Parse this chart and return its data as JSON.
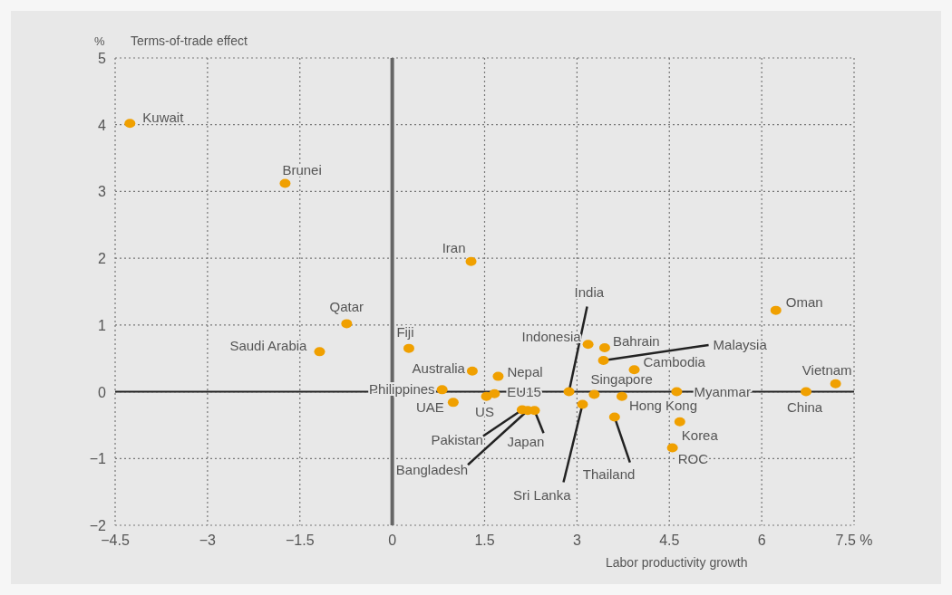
{
  "chart_data": {
    "type": "scatter",
    "ylabel": "Terms-of-trade effect",
    "xlabel": "Labor productivity growth",
    "xlim": [
      -4.5,
      7.5
    ],
    "ylim": [
      -2,
      5
    ],
    "xticks": [
      {
        "value": -4.5,
        "label": "−4.5"
      },
      {
        "value": -3,
        "label": "−3"
      },
      {
        "value": -1.5,
        "label": "−1.5"
      },
      0,
      1.5,
      3,
      4.5,
      6,
      {
        "value": 7.5,
        "label": "7.5 %"
      }
    ],
    "yticks": [
      {
        "value": -2,
        "label": "−2"
      },
      {
        "value": -1,
        "label": "−1"
      },
      0,
      1,
      2,
      3,
      4,
      5
    ],
    "grid": true,
    "marker": "circle",
    "ref_lines": [
      {
        "axis": "x",
        "value": 0,
        "color": "#666666"
      },
      {
        "axis": "y",
        "value": 0,
        "color": "#222222"
      }
    ],
    "series": [
      {
        "color": "#f0a000",
        "x": [
          -4.26,
          -1.74,
          1.28,
          -0.74,
          -1.18,
          0.27,
          1.3,
          1.72,
          0.81,
          0.99,
          1.53,
          1.66,
          2.11,
          2.2,
          2.31,
          2.87,
          3.09,
          3.18,
          3.45,
          3.43,
          3.28,
          3.93,
          3.73,
          3.61,
          4.62,
          4.67,
          4.55,
          6.23,
          6.72,
          7.2
        ],
        "values": [
          4.02,
          3.12,
          1.95,
          1.02,
          0.6,
          0.65,
          0.31,
          0.23,
          0.03,
          -0.16,
          -0.07,
          -0.03,
          -0.27,
          -0.28,
          -0.28,
          0,
          -0.19,
          0.71,
          0.66,
          0.47,
          -0.04,
          0.33,
          -0.07,
          -0.38,
          0,
          -0.45,
          -0.84,
          1.22,
          0,
          0.12
        ]
      }
    ],
    "annotations": [
      "%",
      {
        "text": "Kuwait",
        "x": -4.26,
        "y": 4.02
      },
      {
        "text": "Brunei",
        "x": -1.74,
        "y": 3.12
      },
      {
        "text": "Iran",
        "x": 1.28,
        "y": 1.95
      },
      {
        "text": "Qatar",
        "x": -0.74,
        "y": 1.02
      },
      {
        "text": "Saudi Arabia",
        "x": -1.18,
        "y": 0.6
      },
      {
        "text": "Fiji",
        "x": 0.27,
        "y": 0.65
      },
      {
        "text": "Australia",
        "x": 1.3,
        "y": 0.31
      },
      {
        "text": "Nepal",
        "x": 1.72,
        "y": 0.23
      },
      {
        "text": "Philippines",
        "x": 0.81,
        "y": 0.03
      },
      {
        "text": "UAE",
        "x": 0.99,
        "y": -0.16
      },
      {
        "text": "US",
        "x": 1.53,
        "y": -0.07
      },
      {
        "text": "EU15",
        "x": 1.66,
        "y": -0.03
      },
      {
        "text": "Pakistan",
        "x": 2.11,
        "y": -0.27
      },
      {
        "text": "Bangladesh",
        "x": 2.2,
        "y": -0.28
      },
      {
        "text": "Japan",
        "x": 2.31,
        "y": -0.28
      },
      {
        "text": "India",
        "x": 2.87,
        "y": 0
      },
      {
        "text": "Sri Lanka",
        "x": 3.09,
        "y": -0.19
      },
      {
        "text": "Indonesia",
        "x": 3.18,
        "y": 0.71
      },
      {
        "text": "Bahrain",
        "x": 3.45,
        "y": 0.66
      },
      {
        "text": "Malaysia",
        "x": 3.43,
        "y": 0.47
      },
      {
        "text": "Singapore",
        "x": 3.28,
        "y": -0.04
      },
      {
        "text": "Cambodia",
        "x": 3.93,
        "y": 0.33
      },
      {
        "text": "Hong Kong",
        "x": 3.73,
        "y": -0.07
      },
      {
        "text": "Thailand",
        "x": 3.61,
        "y": -0.38
      },
      {
        "text": "Myanmar",
        "x": 4.62,
        "y": 0
      },
      {
        "text": "Korea",
        "x": 4.67,
        "y": -0.45
      },
      {
        "text": "ROC",
        "x": 4.55,
        "y": -0.84
      },
      {
        "text": "Oman",
        "x": 6.23,
        "y": 1.22
      },
      {
        "text": "China",
        "x": 6.72,
        "y": 0
      },
      {
        "text": "Vietnam",
        "x": 7.2,
        "y": 0.12
      }
    ]
  }
}
